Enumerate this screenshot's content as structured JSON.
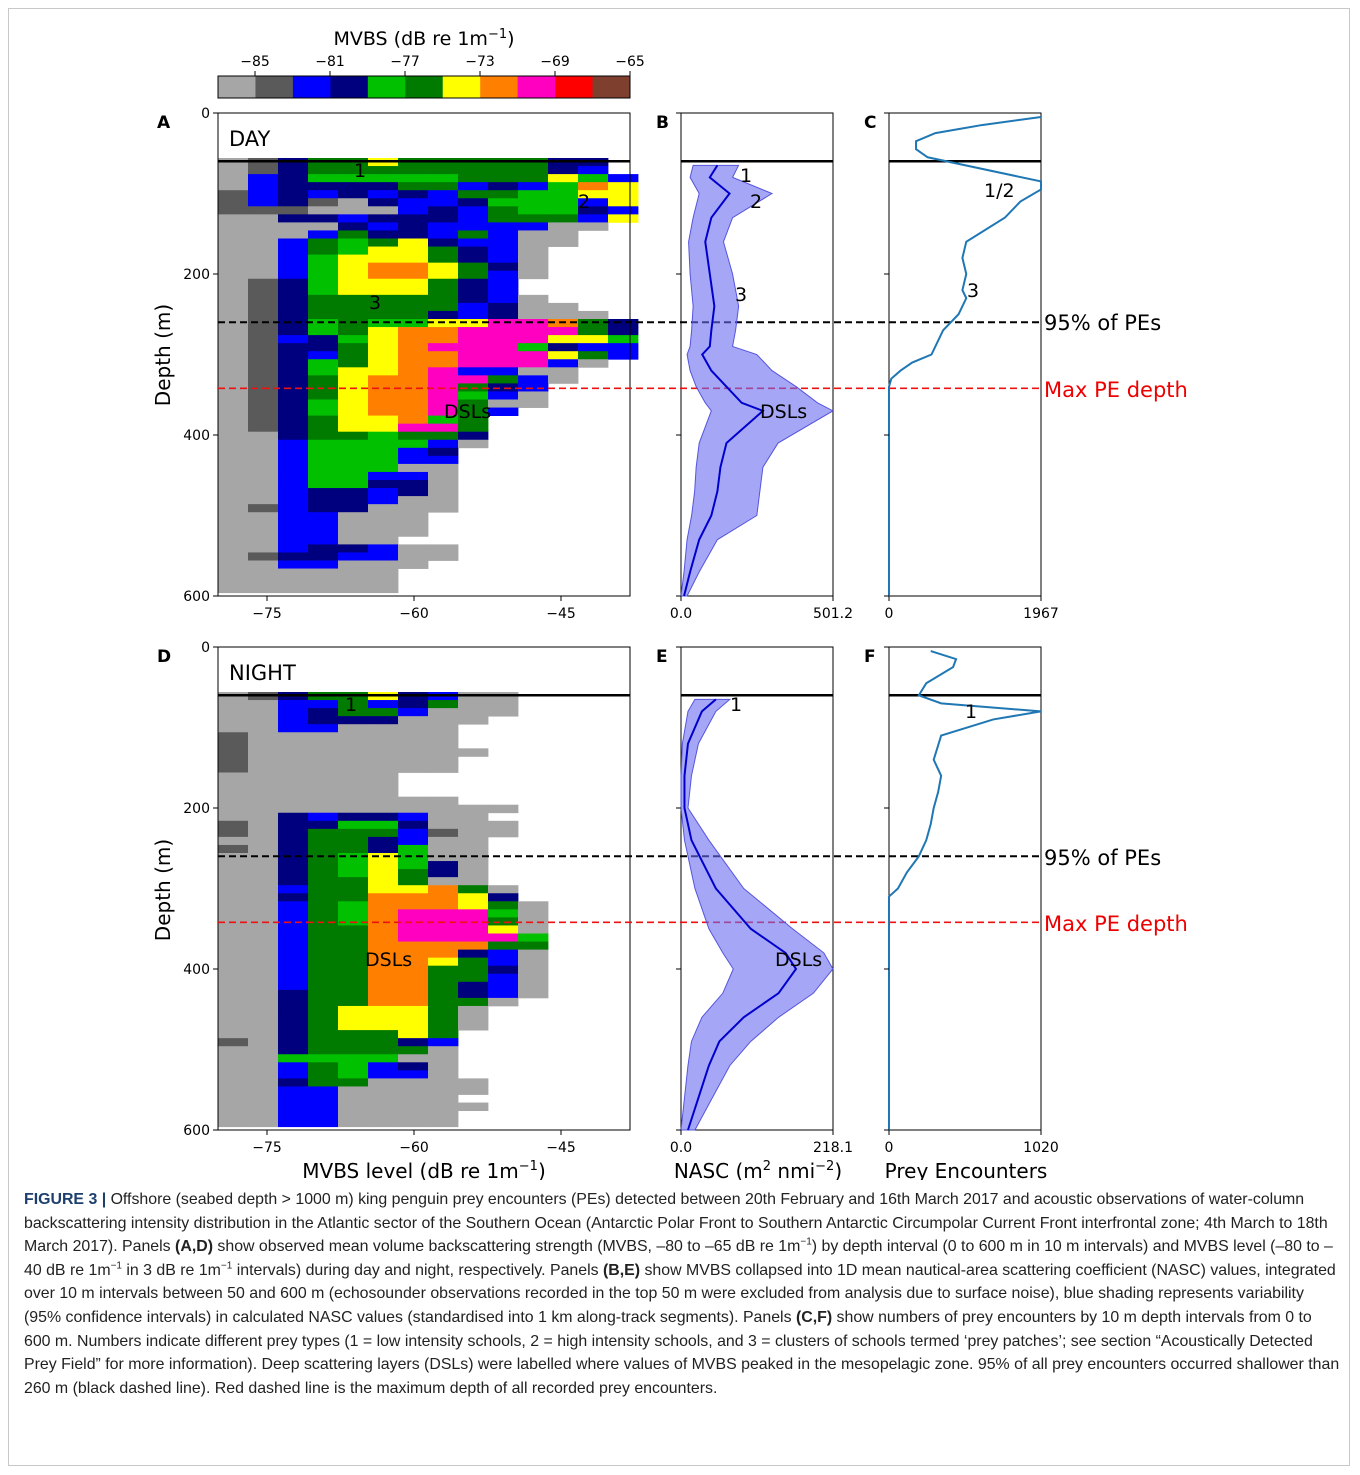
{
  "colorbar": {
    "title_pre": "MVBS (dB re 1m",
    "title_sup": "−1",
    "title_post": ")",
    "ticks": [
      "−85",
      "−81",
      "−77",
      "−73",
      "−69",
      "−65"
    ],
    "colors": [
      "#a6a6a6",
      "#5a5a5a",
      "#0000ff",
      "#00007f",
      "#00c000",
      "#007b00",
      "#ffff00",
      "#ff8000",
      "#ff00c0",
      "#ff0000",
      "#7f3f2f"
    ]
  },
  "panel_letters": [
    "A",
    "B",
    "C",
    "D",
    "E",
    "F"
  ],
  "panel_titles": {
    "day": "DAY",
    "night": "NIGHT"
  },
  "axes": {
    "depth_label": "Depth (m)",
    "depth_ticks": [
      "0",
      "200",
      "400",
      "600"
    ],
    "mvbs_ticks": [
      "−75",
      "−60",
      "−45"
    ],
    "mvbs_label_pre": "MVBS level (dB re 1m",
    "mvbs_label_sup": "−1",
    "mvbs_label_post": ")",
    "nasc_label_pre": "NASC (m",
    "nasc_label_sup1": "2",
    "nasc_label_mid": " nmi",
    "nasc_label_sup2": "−2",
    "nasc_label_post": ")",
    "nasc_ticks_day": [
      "0.0",
      "501.2"
    ],
    "nasc_ticks_night": [
      "0.0",
      "218.1"
    ],
    "pe_label": "Prey Encounters",
    "pe_ticks_day": [
      "0",
      "1967"
    ],
    "pe_ticks_night": [
      "0",
      "1020"
    ]
  },
  "annotations": {
    "pe95": "95% of PEs",
    "maxpe": "Max PE depth",
    "dsl": "DSLs",
    "one": "1",
    "two": "2",
    "three": "3",
    "onetwo": "1/2"
  },
  "chart_data": [
    {
      "type": "line",
      "panel": "B",
      "title": "",
      "xlabel": "NASC (m2 nmi-2)",
      "ylabel": "Depth (m)",
      "xlim": [
        0,
        501.2
      ],
      "ylim": [
        600,
        0
      ],
      "series": [
        {
          "name": "",
          "x": [
            120,
            95,
            160,
            100,
            80,
            95,
            110,
            100,
            95,
            70,
            100,
            150,
            200,
            270,
            150,
            130,
            120,
            100,
            60,
            30,
            10
          ],
          "y": [
            65,
            80,
            100,
            130,
            160,
            200,
            240,
            270,
            290,
            300,
            320,
            340,
            360,
            370,
            410,
            440,
            470,
            500,
            530,
            570,
            600
          ]
        },
        {
          "name": "",
          "x": [
            40,
            30,
            60,
            40,
            25,
            30,
            40,
            35,
            30,
            20,
            30,
            50,
            80,
            100,
            60,
            50,
            45,
            35,
            20,
            10,
            0
          ],
          "y": [
            65,
            80,
            100,
            130,
            160,
            200,
            240,
            270,
            290,
            300,
            320,
            340,
            360,
            370,
            410,
            440,
            470,
            500,
            530,
            570,
            600
          ]
        },
        {
          "name": "",
          "x": [
            190,
            170,
            300,
            170,
            140,
            170,
            190,
            180,
            170,
            250,
            300,
            380,
            450,
            501,
            320,
            270,
            260,
            250,
            120,
            60,
            20
          ],
          "y": [
            65,
            80,
            100,
            130,
            160,
            200,
            240,
            270,
            290,
            300,
            320,
            340,
            360,
            370,
            410,
            440,
            470,
            500,
            530,
            570,
            600
          ]
        }
      ]
    },
    {
      "type": "line",
      "panel": "C",
      "title": "",
      "xlabel": "Prey Encounters",
      "ylabel": "Depth (m)",
      "xlim": [
        0,
        1967
      ],
      "ylim": [
        600,
        0
      ],
      "series": [
        {
          "name": "",
          "x": [
            1967,
            1200,
            600,
            350,
            350,
            500,
            1967,
            1967,
            1700,
            1500,
            1000,
            950,
            1000,
            950,
            1000,
            900,
            900,
            800,
            700,
            600,
            550,
            300,
            150,
            30,
            0,
            0
          ],
          "y": [
            5,
            15,
            25,
            35,
            45,
            55,
            85,
            95,
            110,
            130,
            160,
            180,
            200,
            220,
            230,
            250,
            250,
            260,
            270,
            290,
            300,
            310,
            320,
            330,
            340,
            600
          ]
        }
      ]
    },
    {
      "type": "line",
      "panel": "E",
      "title": "",
      "xlabel": "NASC (m2 nmi-2)",
      "ylabel": "Depth (m)",
      "xlim": [
        0,
        218.1
      ],
      "ylim": [
        600,
        0
      ],
      "series": [
        {
          "name": "",
          "x": [
            50,
            30,
            10,
            5,
            5,
            15,
            50,
            100,
            150,
            165,
            140,
            90,
            55,
            40,
            25,
            10
          ],
          "y": [
            65,
            80,
            120,
            160,
            200,
            240,
            300,
            350,
            380,
            400,
            430,
            460,
            490,
            520,
            560,
            600
          ]
        },
        {
          "name": "",
          "x": [
            20,
            10,
            2,
            0,
            0,
            5,
            20,
            40,
            60,
            75,
            60,
            30,
            15,
            10,
            5,
            0
          ],
          "y": [
            65,
            80,
            120,
            160,
            200,
            240,
            300,
            350,
            380,
            400,
            430,
            460,
            490,
            520,
            560,
            600
          ]
        },
        {
          "name": "",
          "x": [
            70,
            50,
            25,
            15,
            10,
            40,
            90,
            160,
            205,
            218,
            190,
            140,
            100,
            70,
            45,
            20
          ],
          "y": [
            65,
            80,
            120,
            160,
            200,
            240,
            300,
            350,
            380,
            400,
            430,
            460,
            490,
            520,
            560,
            600
          ]
        }
      ]
    },
    {
      "type": "line",
      "panel": "F",
      "title": "",
      "xlabel": "Prey Encounters",
      "ylabel": "Depth (m)",
      "xlim": [
        0,
        1020
      ],
      "ylim": [
        600,
        0
      ],
      "series": [
        {
          "name": "",
          "x": [
            280,
            450,
            430,
            250,
            200,
            350,
            1020,
            700,
            350,
            300,
            350,
            330,
            300,
            280,
            250,
            200,
            120,
            60,
            0,
            0
          ],
          "y": [
            5,
            15,
            25,
            45,
            60,
            70,
            80,
            90,
            110,
            140,
            160,
            180,
            200,
            220,
            240,
            260,
            280,
            300,
            310,
            600
          ]
        }
      ]
    },
    {
      "type": "heatmap",
      "panel": "A",
      "title": "DAY",
      "xlabel": "MVBS level (dB re 1m-1)",
      "ylabel": "Depth (m)",
      "xlim": [
        -80,
        -38
      ],
      "ylim": [
        600,
        0
      ]
    },
    {
      "type": "heatmap",
      "panel": "D",
      "title": "NIGHT",
      "xlabel": "MVBS level (dB re 1m-1)",
      "ylabel": "Depth (m)",
      "xlim": [
        -80,
        -38
      ],
      "ylim": [
        600,
        0
      ]
    }
  ],
  "caption": {
    "label": "FIGURE 3 |",
    "parts": [
      " Offshore (seabed depth > 1000 m) king penguin prey encounters (PEs) detected between 20th February and 16th March 2017 and acoustic observations of water-column backscattering intensity distribution in the Atlantic sector of the Southern Ocean (Antarctic Polar Front to Southern Antarctic Circumpolar Current Front interfrontal zone; 4th March to 18th March 2017). Panels ",
      "(A,D)",
      " show observed mean volume backscattering strength (MVBS, –80 to –65 dB re 1m",
      "−1",
      ") by depth interval (0 to 600 m in 10 m intervals) and MVBS level (–80 to –40 dB re 1m",
      "−1",
      " in 3 dB re 1m",
      "−1",
      " intervals) during day and night, respectively. Panels ",
      "(B,E)",
      " show MVBS collapsed into 1D mean nautical-area scattering coefficient (NASC) values, integrated over 10 m intervals between 50 and 600 m (echosounder observations recorded in the top 50 m were excluded from analysis due to surface noise), blue shading represents variability (95% confidence intervals) in calculated NASC values (standardised into 1 km along-track segments). Panels ",
      "(C,F)",
      " show numbers of prey encounters by 10 m depth intervals from 0 to 600 m. Numbers indicate different prey types (1 = low intensity schools, 2 = high intensity schools, and 3 = clusters of schools termed ‘prey patches’; see section “Acoustically Detected Prey Field” for more information). Deep scattering layers (DSLs) were labelled where values of MVBS peaked in the mesopelagic zone. 95% of all prey encounters occurred shallower than 260 m (black dashed line). Red dashed line is the maximum depth of all recorded prey encounters."
    ]
  }
}
